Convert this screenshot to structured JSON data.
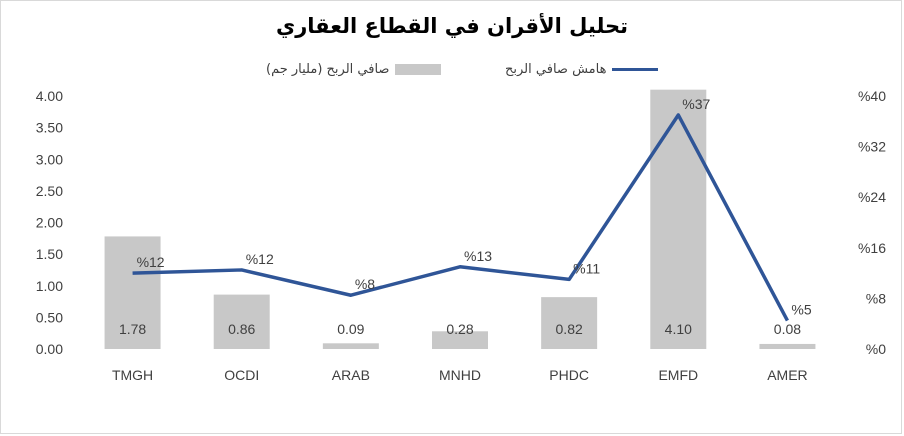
{
  "chart_data": {
    "type": "bar",
    "title": "تحليل الأقران في القطاع العقاري",
    "categories": [
      "TMGH",
      "OCDI",
      "ARAB",
      "MNHD",
      "PHDC",
      "EMFD",
      "AMER"
    ],
    "series": [
      {
        "name": "صافي الربح (مليار جم)",
        "type": "bar",
        "axis": "left",
        "values": [
          1.78,
          0.86,
          0.09,
          0.28,
          0.82,
          4.1,
          0.08
        ],
        "labels": [
          "1.78",
          "0.86",
          "0.09",
          "0.28",
          "0.82",
          "4.10",
          "0.08"
        ],
        "color": "#c8c8c8"
      },
      {
        "name": "هامش صافي الربح",
        "type": "line",
        "axis": "right",
        "values": [
          12,
          12.5,
          8.5,
          13,
          11,
          37,
          4.5
        ],
        "labels": [
          "%12",
          "%12",
          "%8",
          "%13",
          "%11",
          "%37",
          "%5"
        ],
        "color": "#2f5597"
      }
    ],
    "y_left": {
      "lim": [
        0,
        4
      ],
      "ticks": [
        0,
        0.5,
        1,
        1.5,
        2,
        2.5,
        3,
        3.5,
        4
      ],
      "tick_labels": [
        "0.00",
        "0.50",
        "1.00",
        "1.50",
        "2.00",
        "2.50",
        "3.00",
        "3.50",
        "4.00"
      ]
    },
    "y_right": {
      "lim": [
        0,
        40
      ],
      "ticks": [
        0,
        8,
        16,
        24,
        32,
        40
      ],
      "tick_labels": [
        "%0",
        "%8",
        "%16",
        "%24",
        "%32",
        "%40"
      ]
    },
    "grid": false,
    "legend": "top-center"
  }
}
